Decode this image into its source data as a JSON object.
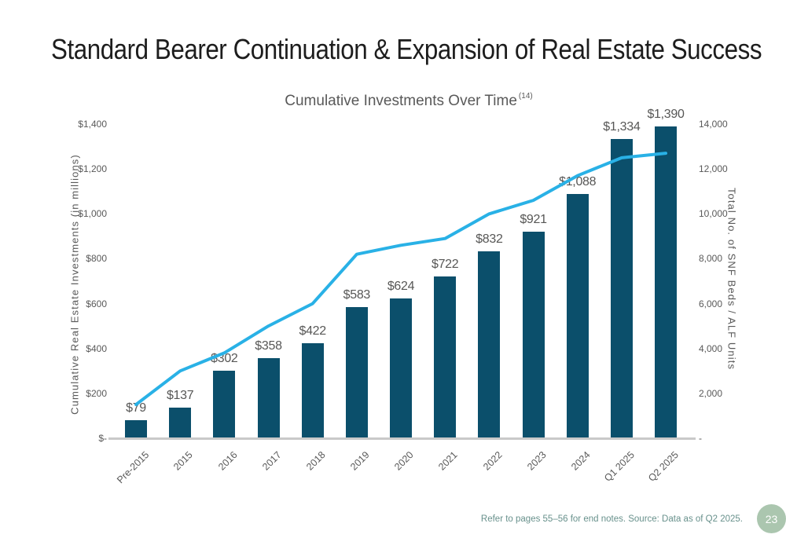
{
  "slide": {
    "title": "Standard Bearer Continuation & Expansion of Real Estate Success",
    "footer": "Refer to pages 55–56 for end notes. Source: Data as of Q2 2025.",
    "page_number": "23"
  },
  "colors": {
    "bar": "#0b4f6b",
    "line": "#29b1e6",
    "title_text": "#1d1d1d",
    "chart_text": "#595959",
    "footer_text": "#68918c",
    "page_badge": "#abc6af",
    "axis_line": "#c9c9c9"
  },
  "chart_data": {
    "type": "combo",
    "title": "Cumulative Investments Over Time",
    "title_superscript": "(14)",
    "gridlines": false,
    "legend_position": "none",
    "categories": [
      "Pre-2015",
      "2015",
      "2016",
      "2017",
      "2018",
      "2019",
      "2020",
      "2021",
      "2022",
      "2023",
      "2024",
      "Q1 2025",
      "Q2 2025"
    ],
    "series": [
      {
        "name": "Cumulative Real Estate Investments (in millions)",
        "type": "bar",
        "axis": "left",
        "color": "#0b4f6b",
        "values": [
          79,
          137,
          302,
          358,
          422,
          583,
          624,
          722,
          832,
          921,
          1088,
          1334,
          1390
        ],
        "labels": [
          "$79",
          "$137",
          "$302",
          "$358",
          "$422",
          "$583",
          "$624",
          "$722",
          "$832",
          "$921",
          "$1,088",
          "$1,334",
          "$1,390"
        ]
      },
      {
        "name": "Total No. of SNF Beds / ALF Units",
        "type": "line",
        "axis": "right",
        "color": "#29b1e6",
        "values": [
          1500,
          3000,
          3800,
          5000,
          6000,
          8200,
          8600,
          8900,
          10000,
          10600,
          11700,
          12500,
          12700
        ]
      }
    ],
    "left_axis": {
      "label": "Cumulative Real Estate Investments (in millions)",
      "min": 0,
      "max": 1400,
      "ticks_bottom_to_top": [
        "$-",
        "$200",
        "$400",
        "$600",
        "$800",
        "$1,000",
        "$1,200",
        "$1,400"
      ]
    },
    "right_axis": {
      "label": "Total No. of SNF Beds / ALF Units",
      "min": 0,
      "max": 14000,
      "ticks_bottom_to_top": [
        "-",
        "2,000",
        "4,000",
        "6,000",
        "8,000",
        "10,000",
        "12,000",
        "14,000"
      ]
    }
  }
}
